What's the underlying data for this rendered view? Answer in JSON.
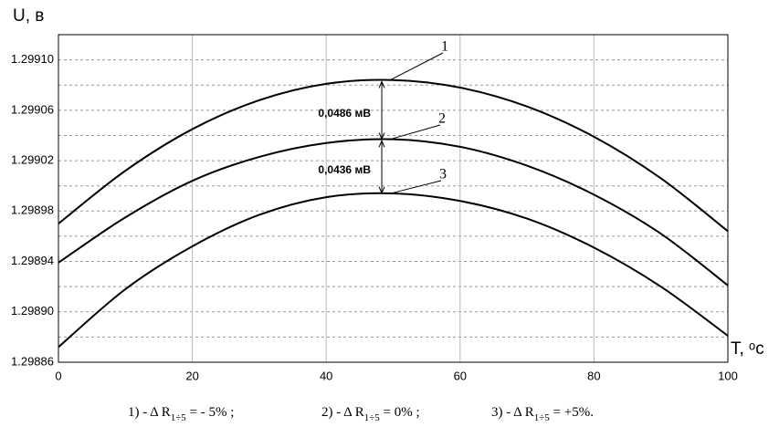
{
  "chart_data": {
    "type": "line",
    "y_label": "U, в",
    "x_label": "T, ᵒс",
    "xlim": [
      0,
      100
    ],
    "xticks": [
      0,
      20,
      40,
      60,
      80,
      100
    ],
    "ylim": [
      1.29886,
      1.29912
    ],
    "yticks": [
      1.29886,
      {
        "value": 1.2989,
        "label": "1.29890"
      },
      1.29894,
      1.29898,
      1.29902,
      1.29906,
      {
        "value": 1.2991,
        "label": "1.29910"
      }
    ],
    "y_minor_gridlines": [
      1.29888,
      1.29892,
      1.29896,
      1.299,
      1.29904,
      1.29908
    ],
    "grid": true,
    "x": [
      0,
      10,
      20,
      30,
      40,
      50,
      60,
      70,
      80,
      90,
      100
    ],
    "series": [
      {
        "name": "1",
        "color": "#000000",
        "values": [
          1.29897,
          1.299012,
          1.299045,
          1.299068,
          1.299081,
          1.299084,
          1.299078,
          1.299063,
          1.299039,
          1.299006,
          1.298964
        ]
      },
      {
        "name": "2",
        "color": "#000000",
        "values": [
          1.298939,
          1.298975,
          1.299004,
          1.299023,
          1.299034,
          1.299037,
          1.299031,
          1.299016,
          1.298993,
          1.298962,
          1.298921
        ]
      },
      {
        "name": "3",
        "color": "#000000",
        "values": [
          1.298872,
          1.298918,
          1.298952,
          1.298977,
          1.298991,
          1.298994,
          1.298988,
          1.298974,
          1.298951,
          1.29892,
          1.298881
        ]
      }
    ],
    "annotations": [
      "0,0486 мВ",
      "0,0436 мВ"
    ],
    "captions": [
      {
        "prefix": "1) -  Δ R",
        "sub": "1÷5",
        "suffix": " = - 5% ;"
      },
      {
        "prefix": "2) - Δ R",
        "sub": "1÷5",
        "suffix": " = 0% ;"
      },
      {
        "prefix": "3) - Δ R",
        "sub": "1÷5",
        "suffix": " = +5%."
      }
    ]
  }
}
